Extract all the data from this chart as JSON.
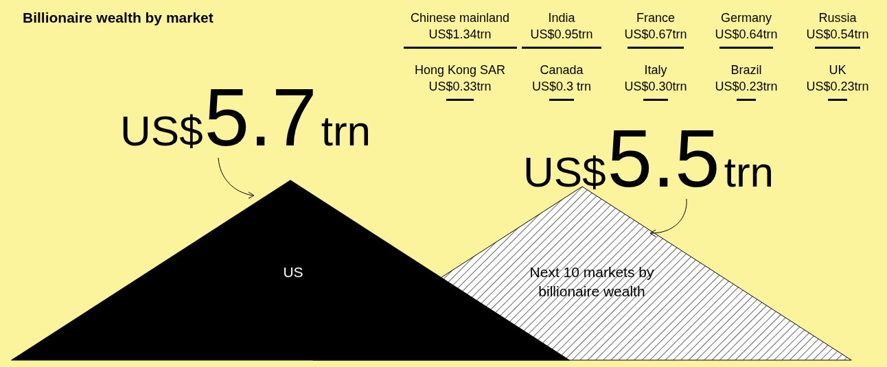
{
  "chart_data": [
    {
      "type": "other",
      "title": "Billionaire wealth by market",
      "categories": [
        "US",
        "Next 10 markets by billionaire wealth"
      ],
      "values": [
        5.7,
        5.5
      ],
      "value_labels": [
        "US$5.7trn",
        "US$5.5trn"
      ]
    },
    {
      "type": "other",
      "color": "#000000",
      "categories": [
        "Chinese mainland",
        "India",
        "France",
        "Germany",
        "Russia",
        "Hong Kong SAR",
        "Canada",
        "Italy",
        "Brazil",
        "UK"
      ],
      "values": [
        1.34,
        0.95,
        0.67,
        0.64,
        0.54,
        0.33,
        0.3,
        0.3,
        0.23,
        0.23
      ],
      "value_labels": [
        "US$1.34trn",
        "US$0.95trn",
        "US$0.67trn",
        "US$0.64trn",
        "US$0.54trn",
        "US$0.33trn",
        "US$0.3 trn",
        "US$0.30trn",
        "US$0.23trn",
        "US$0.23trn"
      ]
    }
  ]
}
